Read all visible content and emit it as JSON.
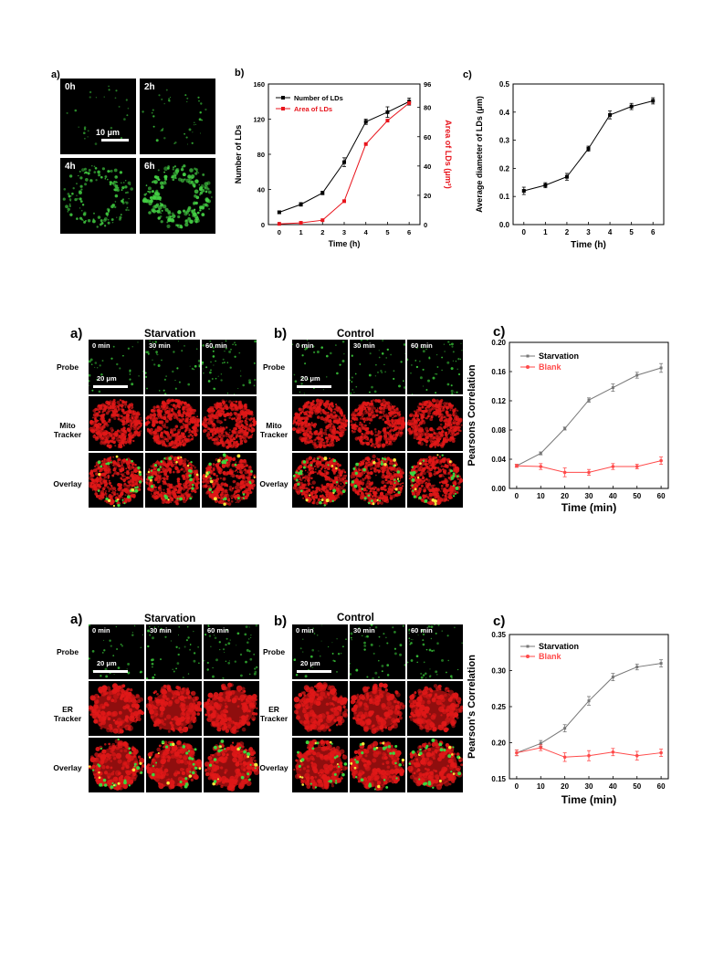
{
  "figure1": {
    "panel_a": {
      "label": "a)",
      "tiles": [
        "0h",
        "2h",
        "4h",
        "6h"
      ],
      "scalebar": "10 μm"
    },
    "panel_b_label": "b)",
    "panel_c_label": "c)"
  },
  "figure2": {
    "panel_a_label": "a)",
    "panel_a_title": "Starvation",
    "panel_b_label": "b)",
    "panel_b_title": "Control",
    "panel_c_label": "c)",
    "times": [
      "0 min",
      "30 min",
      "60 min"
    ],
    "rows": [
      "Probe",
      "Mito Tracker",
      "Overlay"
    ],
    "scalebar": "20 μm"
  },
  "figure3": {
    "panel_a_label": "a)",
    "panel_a_title": "Starvation",
    "panel_b_label": "b)",
    "panel_b_title": "Control",
    "panel_c_label": "c)",
    "times": [
      "0 min",
      "30 min",
      "60 min"
    ],
    "rows": [
      "Probe",
      "ER Tracker",
      "Overlay"
    ],
    "scalebar": "20 μm"
  },
  "chart_data": [
    {
      "id": "fig1b",
      "type": "line",
      "x": [
        0,
        1,
        2,
        3,
        4,
        5,
        6
      ],
      "xlabel": "Time (h)",
      "ylabel": "Number of LDs",
      "ylabel_right": "Area of LDs (μm²)",
      "xlim": [
        -0.5,
        6.5
      ],
      "ylim": [
        0,
        160
      ],
      "ylim_right": [
        0,
        96
      ],
      "yticks": [
        0,
        40,
        80,
        120,
        160
      ],
      "yticks_right": [
        0,
        20,
        40,
        60,
        80,
        96
      ],
      "ytick_labels_right": [
        "0",
        "20",
        "40",
        "60",
        "80",
        "96"
      ],
      "legend": "top-left",
      "series": [
        {
          "name": "Number of LDs",
          "axis": "left",
          "color": "#000000",
          "values": [
            14,
            23,
            36,
            71,
            117,
            128,
            140
          ],
          "errors": [
            1.5,
            2,
            2,
            5,
            3,
            6,
            4
          ]
        },
        {
          "name": "Area of LDs",
          "axis": "right",
          "color": "#e8141c",
          "values": [
            0.5,
            1.2,
            3,
            16,
            55,
            71,
            83
          ],
          "errors": [
            0,
            0,
            0,
            0,
            0,
            0,
            0
          ]
        }
      ]
    },
    {
      "id": "fig1c",
      "type": "line",
      "x": [
        0,
        1,
        2,
        3,
        4,
        5,
        6
      ],
      "xlabel": "Time (h)",
      "ylabel": "Average diameter of LDs (μm)",
      "xlim": [
        -0.5,
        6.5
      ],
      "ylim": [
        0,
        0.5
      ],
      "yticks": [
        0.0,
        0.1,
        0.2,
        0.3,
        0.4,
        0.5
      ],
      "series": [
        {
          "name": "",
          "color": "#000000",
          "values": [
            0.12,
            0.14,
            0.17,
            0.27,
            0.39,
            0.42,
            0.44
          ],
          "errors": [
            0.013,
            0.009,
            0.012,
            0.009,
            0.014,
            0.011,
            0.011
          ]
        }
      ]
    },
    {
      "id": "fig2c",
      "type": "line",
      "x": [
        0,
        10,
        20,
        30,
        40,
        50,
        60
      ],
      "xlabel": "Time (min)",
      "ylabel": "Pearsons Correlation",
      "xlim": [
        -3,
        63
      ],
      "ylim": [
        0.0,
        0.2
      ],
      "yticks": [
        0.0,
        0.04,
        0.08,
        0.12,
        0.16,
        0.2
      ],
      "ytick_labels": [
        "0.00",
        "0.04",
        "0.08",
        "0.12",
        "0.16",
        "0.20"
      ],
      "legend": "top-left",
      "series": [
        {
          "name": "Starvation",
          "color": "#777777",
          "values": [
            0.031,
            0.048,
            0.082,
            0.121,
            0.138,
            0.155,
            0.165
          ],
          "errors": [
            0.002,
            0.002,
            0.002,
            0.003,
            0.005,
            0.004,
            0.006
          ]
        },
        {
          "name": "Blank",
          "color": "#ff4a4a",
          "values": [
            0.031,
            0.03,
            0.022,
            0.022,
            0.03,
            0.03,
            0.038
          ],
          "errors": [
            0.002,
            0.004,
            0.006,
            0.004,
            0.004,
            0.003,
            0.005
          ]
        }
      ]
    },
    {
      "id": "fig3c",
      "type": "line",
      "x": [
        0,
        10,
        20,
        30,
        40,
        50,
        60
      ],
      "xlabel": "Time (min)",
      "ylabel": "Pearson's Correlation",
      "xlim": [
        -3,
        63
      ],
      "ylim": [
        0.15,
        0.35
      ],
      "yticks": [
        0.15,
        0.2,
        0.25,
        0.3,
        0.35
      ],
      "ytick_labels": [
        "0.15",
        "0.20",
        "0.25",
        "0.30",
        "0.35"
      ],
      "legend": "top-left",
      "series": [
        {
          "name": "Starvation",
          "color": "#777777",
          "values": [
            0.186,
            0.199,
            0.22,
            0.258,
            0.291,
            0.305,
            0.31
          ],
          "errors": [
            0.004,
            0.004,
            0.005,
            0.006,
            0.005,
            0.004,
            0.005
          ]
        },
        {
          "name": "Blank",
          "color": "#ff4a4a",
          "values": [
            0.186,
            0.193,
            0.18,
            0.182,
            0.187,
            0.182,
            0.186
          ],
          "errors": [
            0.004,
            0.004,
            0.006,
            0.007,
            0.005,
            0.006,
            0.005
          ]
        }
      ]
    }
  ]
}
